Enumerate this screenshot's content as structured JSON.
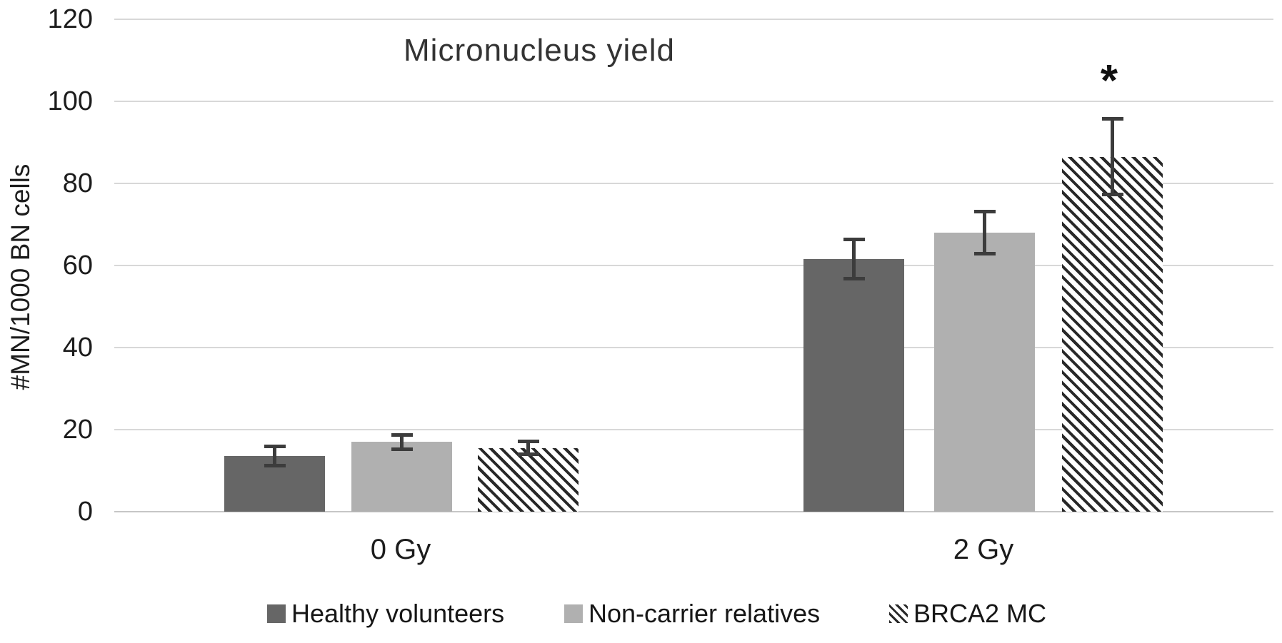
{
  "figure": {
    "title": "Micronucleus yield",
    "ylabel": "#MN/1000 BN cells",
    "significance_marker": "*"
  },
  "chart_data": {
    "type": "bar",
    "title": "Micronucleus yield",
    "xlabel": "",
    "ylabel": "#MN/1000 BN cells",
    "categories": [
      "0 Gy",
      "2 Gy"
    ],
    "series": [
      {
        "name": "Healthy volunteers",
        "values": [
          13.5,
          61.5
        ],
        "errors": [
          2.8,
          5.2
        ],
        "fill": "#666666",
        "pattern": "solid"
      },
      {
        "name": "Non-carrier relatives",
        "values": [
          17.0,
          68.0
        ],
        "errors": [
          2.2,
          5.5
        ],
        "fill": "#b0b0b0",
        "pattern": "solid"
      },
      {
        "name": "BRCA2 MC",
        "values": [
          15.5,
          86.5
        ],
        "errors": [
          2.0,
          9.6
        ],
        "fill": "#ffffff",
        "pattern": "diagonal-hatch",
        "hatch_stroke": "#282828"
      }
    ],
    "annotations": [
      {
        "text": "*",
        "meaning": "significant",
        "series": "BRCA2 MC",
        "category": "2 Gy"
      }
    ],
    "ylim": [
      0,
      120
    ],
    "yticks": [
      "0",
      "20",
      "40",
      "60",
      "80",
      "100",
      "120"
    ],
    "grid": true,
    "legend_position": "bottom",
    "error_bars": true,
    "colors": {
      "gridline": "#d8d8d8",
      "error_bar": "#3c3c3c",
      "text": "#1c1c1c"
    }
  }
}
